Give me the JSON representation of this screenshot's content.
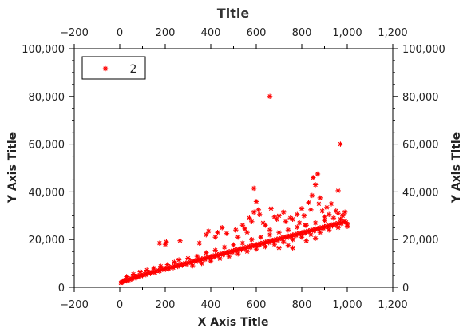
{
  "chart_data": {
    "type": "scatter",
    "title": "Title",
    "xlabel": "X Axis Title",
    "ylabel": "Y Axis Title",
    "xlim": [
      -200,
      1200
    ],
    "ylim": [
      0,
      100000
    ],
    "x_ticks": [
      -200,
      0,
      200,
      400,
      600,
      800,
      1000,
      1200
    ],
    "x_tick_labels": [
      "−200",
      "0",
      "200",
      "400",
      "600",
      "800",
      "1,000",
      "1,200"
    ],
    "y_ticks": [
      0,
      20000,
      40000,
      60000,
      80000,
      100000
    ],
    "y_tick_labels": [
      "0",
      "20,000",
      "40,000",
      "60,000",
      "80,000",
      "100,000"
    ],
    "grid": false,
    "legend": {
      "placement": "top-left",
      "entries": [
        "2"
      ]
    },
    "series": [
      {
        "name": "2",
        "color": "#ff0000",
        "marker": "asterisk",
        "points": [
          [
            5,
            1800
          ],
          [
            8,
            2100
          ],
          [
            12,
            2500
          ],
          [
            15,
            2300
          ],
          [
            20,
            2900
          ],
          [
            25,
            3100
          ],
          [
            30,
            2700
          ],
          [
            35,
            3300
          ],
          [
            40,
            3500
          ],
          [
            45,
            3200
          ],
          [
            50,
            3800
          ],
          [
            55,
            3600
          ],
          [
            60,
            4100
          ],
          [
            65,
            4300
          ],
          [
            70,
            4000
          ],
          [
            75,
            4600
          ],
          [
            80,
            4800
          ],
          [
            85,
            4400
          ],
          [
            90,
            5000
          ],
          [
            95,
            5200
          ],
          [
            100,
            4900
          ],
          [
            110,
            5500
          ],
          [
            115,
            5300
          ],
          [
            120,
            5900
          ],
          [
            130,
            6100
          ],
          [
            135,
            5800
          ],
          [
            140,
            6400
          ],
          [
            150,
            6600
          ],
          [
            155,
            6200
          ],
          [
            160,
            6900
          ],
          [
            170,
            7100
          ],
          [
            175,
            6800
          ],
          [
            180,
            7400
          ],
          [
            190,
            7600
          ],
          [
            195,
            7300
          ],
          [
            200,
            7900
          ],
          [
            210,
            8100
          ],
          [
            215,
            7700
          ],
          [
            220,
            8400
          ],
          [
            230,
            8600
          ],
          [
            235,
            8200
          ],
          [
            240,
            8900
          ],
          [
            250,
            9100
          ],
          [
            255,
            8700
          ],
          [
            260,
            9400
          ],
          [
            270,
            9600
          ],
          [
            275,
            9200
          ],
          [
            280,
            9900
          ],
          [
            290,
            10100
          ],
          [
            295,
            9700
          ],
          [
            300,
            10400
          ],
          [
            310,
            10600
          ],
          [
            315,
            10200
          ],
          [
            320,
            10900
          ],
          [
            330,
            11100
          ],
          [
            335,
            10700
          ],
          [
            340,
            11400
          ],
          [
            350,
            11600
          ],
          [
            355,
            11200
          ],
          [
            360,
            11900
          ],
          [
            370,
            12100
          ],
          [
            375,
            11700
          ],
          [
            380,
            12400
          ],
          [
            390,
            12600
          ],
          [
            395,
            12200
          ],
          [
            400,
            12900
          ],
          [
            410,
            13100
          ],
          [
            415,
            12700
          ],
          [
            420,
            13400
          ],
          [
            430,
            13600
          ],
          [
            435,
            13200
          ],
          [
            440,
            13900
          ],
          [
            450,
            14100
          ],
          [
            455,
            13700
          ],
          [
            460,
            14400
          ],
          [
            470,
            14600
          ],
          [
            475,
            14200
          ],
          [
            480,
            14900
          ],
          [
            490,
            15100
          ],
          [
            495,
            14700
          ],
          [
            500,
            15400
          ],
          [
            510,
            15600
          ],
          [
            515,
            15200
          ],
          [
            520,
            15900
          ],
          [
            530,
            16100
          ],
          [
            535,
            15700
          ],
          [
            540,
            16400
          ],
          [
            550,
            16600
          ],
          [
            555,
            16200
          ],
          [
            560,
            16900
          ],
          [
            570,
            17100
          ],
          [
            575,
            16700
          ],
          [
            580,
            17400
          ],
          [
            590,
            17600
          ],
          [
            595,
            17200
          ],
          [
            600,
            17900
          ],
          [
            610,
            18100
          ],
          [
            615,
            17700
          ],
          [
            620,
            18400
          ],
          [
            630,
            18600
          ],
          [
            635,
            18200
          ],
          [
            640,
            18900
          ],
          [
            650,
            19100
          ],
          [
            655,
            18700
          ],
          [
            660,
            19400
          ],
          [
            670,
            19600
          ],
          [
            675,
            19200
          ],
          [
            680,
            19900
          ],
          [
            690,
            20100
          ],
          [
            695,
            19700
          ],
          [
            700,
            20400
          ],
          [
            710,
            20600
          ],
          [
            715,
            20200
          ],
          [
            720,
            20900
          ],
          [
            730,
            21100
          ],
          [
            735,
            20700
          ],
          [
            740,
            21400
          ],
          [
            750,
            21600
          ],
          [
            755,
            21200
          ],
          [
            760,
            21900
          ],
          [
            770,
            22100
          ],
          [
            775,
            21700
          ],
          [
            780,
            22400
          ],
          [
            790,
            22600
          ],
          [
            795,
            22200
          ],
          [
            800,
            22900
          ],
          [
            810,
            23100
          ],
          [
            815,
            22700
          ],
          [
            820,
            23400
          ],
          [
            830,
            23600
          ],
          [
            835,
            23200
          ],
          [
            840,
            23900
          ],
          [
            850,
            24100
          ],
          [
            855,
            23700
          ],
          [
            860,
            24400
          ],
          [
            870,
            24600
          ],
          [
            875,
            24200
          ],
          [
            880,
            24900
          ],
          [
            890,
            25100
          ],
          [
            895,
            24700
          ],
          [
            900,
            25400
          ],
          [
            910,
            25600
          ],
          [
            915,
            25200
          ],
          [
            920,
            25900
          ],
          [
            930,
            26100
          ],
          [
            935,
            25700
          ],
          [
            940,
            26400
          ],
          [
            950,
            26600
          ],
          [
            955,
            26200
          ],
          [
            960,
            26900
          ],
          [
            970,
            27100
          ],
          [
            975,
            26700
          ],
          [
            980,
            27400
          ],
          [
            990,
            27600
          ],
          [
            995,
            27200
          ],
          [
            1000,
            26500
          ],
          [
            30,
            4500
          ],
          [
            60,
            5500
          ],
          [
            90,
            6500
          ],
          [
            120,
            7200
          ],
          [
            150,
            8000
          ],
          [
            180,
            8800
          ],
          [
            210,
            9500
          ],
          [
            240,
            10500
          ],
          [
            260,
            11500
          ],
          [
            300,
            12200
          ],
          [
            340,
            13000
          ],
          [
            380,
            14500
          ],
          [
            420,
            15500
          ],
          [
            460,
            16800
          ],
          [
            500,
            17800
          ],
          [
            540,
            18500
          ],
          [
            580,
            20000
          ],
          [
            620,
            21000
          ],
          [
            660,
            22000
          ],
          [
            700,
            23000
          ],
          [
            740,
            24000
          ],
          [
            780,
            25200
          ],
          [
            820,
            26000
          ],
          [
            860,
            27000
          ],
          [
            900,
            28000
          ],
          [
            940,
            29000
          ],
          [
            980,
            30000
          ],
          [
            960,
            31000
          ],
          [
            990,
            31500
          ],
          [
            920,
            30500
          ],
          [
            320,
            9000
          ],
          [
            360,
            10000
          ],
          [
            400,
            11000
          ],
          [
            440,
            12000
          ],
          [
            480,
            13000
          ],
          [
            520,
            14000
          ],
          [
            560,
            15000
          ],
          [
            600,
            16000
          ],
          [
            640,
            17000
          ],
          [
            680,
            18000
          ],
          [
            720,
            19000
          ],
          [
            760,
            20000
          ],
          [
            800,
            21000
          ],
          [
            840,
            22000
          ],
          [
            880,
            23000
          ],
          [
            920,
            24000
          ],
          [
            960,
            25000
          ],
          [
            1000,
            25500
          ],
          [
            700,
            16500
          ],
          [
            740,
            17500
          ],
          [
            820,
            19500
          ],
          [
            860,
            20500
          ],
          [
            760,
            16500
          ],
          [
            175,
            18500
          ],
          [
            200,
            18000
          ],
          [
            205,
            19000
          ],
          [
            265,
            19500
          ],
          [
            350,
            18500
          ],
          [
            380,
            22000
          ],
          [
            390,
            23500
          ],
          [
            420,
            21000
          ],
          [
            430,
            23000
          ],
          [
            450,
            25000
          ],
          [
            470,
            22500
          ],
          [
            510,
            24000
          ],
          [
            520,
            21000
          ],
          [
            540,
            26000
          ],
          [
            550,
            24500
          ],
          [
            560,
            23000
          ],
          [
            570,
            29000
          ],
          [
            580,
            27500
          ],
          [
            590,
            31500
          ],
          [
            590,
            41500
          ],
          [
            600,
            36000
          ],
          [
            610,
            32500
          ],
          [
            615,
            30500
          ],
          [
            630,
            27000
          ],
          [
            640,
            26000
          ],
          [
            660,
            24000
          ],
          [
            665,
            33000
          ],
          [
            680,
            29500
          ],
          [
            690,
            28500
          ],
          [
            700,
            30000
          ],
          [
            720,
            31500
          ],
          [
            730,
            27500
          ],
          [
            750,
            29000
          ],
          [
            760,
            28500
          ],
          [
            780,
            30500
          ],
          [
            790,
            27000
          ],
          [
            800,
            33000
          ],
          [
            810,
            30000
          ],
          [
            815,
            26000
          ],
          [
            830,
            35500
          ],
          [
            840,
            32500
          ],
          [
            845,
            38500
          ],
          [
            850,
            46000
          ],
          [
            860,
            43000
          ],
          [
            870,
            47500
          ],
          [
            875,
            35000
          ],
          [
            880,
            37500
          ],
          [
            890,
            32000
          ],
          [
            900,
            29500
          ],
          [
            910,
            33500
          ],
          [
            930,
            35000
          ],
          [
            950,
            32000
          ],
          [
            960,
            40500
          ],
          [
            970,
            28500
          ],
          [
            660,
            80000
          ],
          [
            970,
            60000
          ]
        ]
      }
    ]
  }
}
